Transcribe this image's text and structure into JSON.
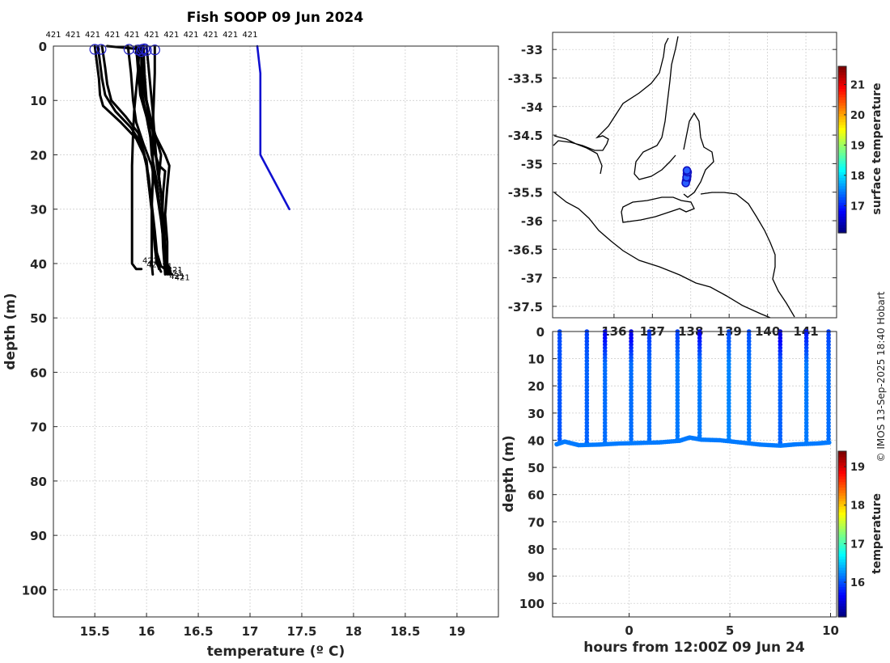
{
  "title": "Fish SOOP 09 Jun 2024",
  "credit": "© IMOS 13-Sep-2025 18:40 Hobart",
  "colors": {
    "profile": "#000000",
    "reference": "#1010d0",
    "marker": "#2020c8"
  },
  "chart_data": [
    {
      "id": "profiles",
      "type": "line",
      "xlabel": "temperature (º C)",
      "ylabel": "depth (m)",
      "xlim": [
        15.1,
        19.4
      ],
      "ylim": [
        105,
        0
      ],
      "y_reversed": true,
      "xticks": [
        "15.5",
        "16",
        "16.5",
        "17",
        "17.5",
        "18",
        "18.5",
        "19"
      ],
      "yticks": [
        "0",
        "10",
        "20",
        "30",
        "40",
        "50",
        "60",
        "70",
        "80",
        "90",
        "100"
      ],
      "top_label": "421",
      "top_label_x": [
        15.1,
        15.29,
        15.48,
        15.67,
        15.86,
        16.05,
        16.24,
        16.43,
        16.62,
        16.81,
        17.0
      ],
      "grid": true,
      "series": [
        {
          "style": "black",
          "points": [
            [
              15.5,
              0
            ],
            [
              15.52,
              3
            ],
            [
              15.54,
              6
            ],
            [
              15.55,
              9
            ],
            [
              15.58,
              11
            ],
            [
              15.75,
              14
            ],
            [
              15.9,
              17
            ],
            [
              16.0,
              21
            ],
            [
              16.02,
              25
            ],
            [
              16.05,
              30
            ],
            [
              16.08,
              35
            ],
            [
              16.1,
              39
            ],
            [
              16.12,
              41
            ]
          ]
        },
        {
          "style": "black",
          "points": [
            [
              15.53,
              0
            ],
            [
              15.55,
              3
            ],
            [
              15.57,
              6
            ],
            [
              15.6,
              9
            ],
            [
              15.7,
              12
            ],
            [
              15.85,
              15
            ],
            [
              15.95,
              18
            ],
            [
              16.0,
              22
            ],
            [
              16.03,
              27
            ],
            [
              16.06,
              32
            ],
            [
              16.08,
              37
            ],
            [
              16.1,
              40
            ],
            [
              16.14,
              41.5
            ]
          ]
        },
        {
          "style": "black",
          "points": [
            [
              15.57,
              0
            ],
            [
              15.6,
              4
            ],
            [
              15.62,
              7
            ],
            [
              15.66,
              10
            ],
            [
              15.8,
              13
            ],
            [
              15.92,
              16
            ],
            [
              15.98,
              20
            ],
            [
              16.02,
              24
            ],
            [
              16.05,
              29
            ],
            [
              16.08,
              34
            ],
            [
              16.1,
              38
            ],
            [
              16.14,
              40.5
            ],
            [
              16.18,
              41
            ]
          ]
        },
        {
          "style": "black",
          "points": [
            [
              15.82,
              0
            ],
            [
              15.85,
              5
            ],
            [
              15.87,
              10
            ],
            [
              15.9,
              14
            ],
            [
              15.97,
              18
            ],
            [
              16.05,
              22
            ],
            [
              16.1,
              27
            ],
            [
              16.14,
              32
            ],
            [
              16.17,
              37
            ],
            [
              16.2,
              41
            ],
            [
              16.22,
              42
            ]
          ]
        },
        {
          "style": "black",
          "points": [
            [
              15.9,
              0
            ],
            [
              15.92,
              5
            ],
            [
              15.94,
              9
            ],
            [
              16.0,
              13
            ],
            [
              16.1,
              17
            ],
            [
              16.18,
              20
            ],
            [
              16.22,
              22
            ],
            [
              16.2,
              26
            ],
            [
              16.18,
              31
            ],
            [
              16.2,
              36
            ],
            [
              16.2,
              40
            ],
            [
              16.24,
              42
            ]
          ]
        },
        {
          "style": "black",
          "points": [
            [
              15.95,
              0
            ],
            [
              15.95,
              4
            ],
            [
              15.97,
              8
            ],
            [
              16.02,
              12
            ],
            [
              16.08,
              16
            ],
            [
              16.14,
              20
            ],
            [
              16.12,
              24
            ],
            [
              16.15,
              29
            ],
            [
              16.17,
              34
            ],
            [
              16.18,
              39
            ],
            [
              16.22,
              41.5
            ]
          ]
        },
        {
          "style": "black",
          "points": [
            [
              15.97,
              0
            ],
            [
              15.98,
              5
            ],
            [
              16.0,
              10
            ],
            [
              16.03,
              15
            ],
            [
              16.05,
              20
            ],
            [
              16.1,
              25
            ],
            [
              16.13,
              30
            ],
            [
              16.16,
              35
            ],
            [
              16.18,
              40
            ],
            [
              16.2,
              42
            ]
          ]
        },
        {
          "style": "black",
          "points": [
            [
              16.0,
              0
            ],
            [
              16.02,
              4
            ],
            [
              16.04,
              8
            ],
            [
              16.06,
              12
            ],
            [
              16.08,
              17
            ],
            [
              16.1,
              22
            ],
            [
              16.14,
              27
            ],
            [
              16.16,
              32
            ],
            [
              16.18,
              37
            ],
            [
              16.18,
              41
            ]
          ]
        },
        {
          "style": "black",
          "points": [
            [
              16.08,
              0
            ],
            [
              16.08,
              5
            ],
            [
              16.07,
              10
            ],
            [
              16.06,
              15
            ],
            [
              16.06,
              20
            ],
            [
              16.06,
              25
            ],
            [
              16.05,
              30
            ],
            [
              16.05,
              35
            ],
            [
              16.05,
              40
            ],
            [
              16.06,
              42
            ]
          ]
        },
        {
          "style": "black",
          "points": [
            [
              15.93,
              0
            ],
            [
              15.92,
              4
            ],
            [
              15.9,
              8
            ],
            [
              15.88,
              12
            ],
            [
              15.87,
              16
            ],
            [
              15.86,
              22
            ],
            [
              15.86,
              28
            ],
            [
              15.86,
              34
            ],
            [
              15.86,
              40
            ],
            [
              15.9,
              41
            ],
            [
              15.95,
              41
            ]
          ]
        },
        {
          "style": "black",
          "points": [
            [
              15.9,
              1
            ],
            [
              15.94,
              5
            ],
            [
              15.96,
              9
            ],
            [
              16.0,
              13
            ],
            [
              16.05,
              18
            ],
            [
              16.12,
              22
            ],
            [
              16.18,
              23
            ],
            [
              16.16,
              27
            ],
            [
              16.15,
              32
            ],
            [
              16.16,
              37
            ],
            [
              16.18,
              42
            ]
          ]
        },
        {
          "style": "black",
          "points": [
            [
              15.62,
              0
            ],
            [
              15.9,
              0.5
            ],
            [
              15.95,
              2
            ],
            [
              15.97,
              6
            ],
            [
              16.0,
              10
            ],
            [
              16.05,
              14
            ],
            [
              16.08,
              19
            ],
            [
              16.12,
              24
            ],
            [
              16.15,
              29
            ],
            [
              16.17,
              34
            ],
            [
              16.18,
              39
            ],
            [
              16.2,
              41
            ]
          ]
        },
        {
          "style": "blue",
          "points": [
            [
              17.07,
              0
            ],
            [
              17.1,
              5
            ],
            [
              17.1,
              10
            ],
            [
              17.1,
              15
            ],
            [
              17.1,
              20
            ],
            [
              17.38,
              30
            ]
          ]
        }
      ],
      "markers": [
        [
          15.5,
          0.6
        ],
        [
          15.56,
          0.6
        ],
        [
          15.83,
          0.6
        ],
        [
          15.92,
          0.7
        ],
        [
          15.96,
          0.6
        ],
        [
          16.0,
          0.8
        ],
        [
          16.08,
          0.7
        ],
        [
          15.95,
          1.0
        ],
        [
          15.98,
          0.5
        ]
      ],
      "end_labels": [
        {
          "text": "421",
          "x": 15.96,
          "y": 39.5
        },
        {
          "text": "421",
          "x": 16.0,
          "y": 40.2
        },
        {
          "text": "421",
          "x": 16.1,
          "y": 40.5
        },
        {
          "text": "421",
          "x": 16.2,
          "y": 41.2
        },
        {
          "text": "421",
          "x": 16.2,
          "y": 41.8
        },
        {
          "text": "421",
          "x": 16.22,
          "y": 42.4
        },
        {
          "text": "421",
          "x": 16.27,
          "y": 42.6
        }
      ]
    },
    {
      "id": "map",
      "type": "scatter",
      "ylim": [
        -37.7,
        -32.7
      ],
      "xlim": [
        134.4,
        141.8
      ],
      "yticks": [
        "-33",
        "-33.5",
        "-34",
        "-34.5",
        "-35",
        "-35.5",
        "-36",
        "-36.5",
        "-37",
        "-37.5"
      ],
      "xticks": [
        "136",
        "137",
        "138",
        "139",
        "140",
        "141"
      ],
      "colorbar": {
        "label": "surface temperature",
        "ticks": [
          "17",
          "18",
          "19",
          "20",
          "21"
        ],
        "range": [
          16.1,
          21.6
        ]
      },
      "points": [
        [
          137.9,
          -35.18
        ],
        [
          137.91,
          -35.22
        ],
        [
          137.9,
          -35.27
        ],
        [
          137.88,
          -35.3
        ],
        [
          137.87,
          -35.34
        ],
        [
          137.89,
          -35.24
        ],
        [
          137.92,
          -35.15
        ],
        [
          137.9,
          -35.12
        ]
      ],
      "grid": true
    },
    {
      "id": "section",
      "type": "scatter",
      "xlabel": "hours from 12:00Z 09 Jun 24",
      "ylabel": "depth (m)",
      "xlim": [
        -3.8,
        10.3
      ],
      "ylim": [
        105,
        0
      ],
      "xticks": [
        "0",
        "5",
        "10"
      ],
      "yticks": [
        "0",
        "10",
        "20",
        "30",
        "40",
        "50",
        "60",
        "70",
        "80",
        "90",
        "100"
      ],
      "colorbar": {
        "label": "temperature",
        "ticks": [
          "16",
          "17",
          "18",
          "19"
        ],
        "range": [
          15.1,
          19.4
        ]
      },
      "casts": [
        {
          "t": -3.45,
          "bottom": 41.5,
          "surf": 15.95,
          "deep": 16.0
        },
        {
          "t": -2.1,
          "bottom": 41.0,
          "surf": 15.9,
          "deep": 16.05
        },
        {
          "t": -1.2,
          "bottom": 41.5,
          "surf": 15.55,
          "deep": 16.1
        },
        {
          "t": 0.1,
          "bottom": 40.5,
          "surf": 15.5,
          "deep": 16.1
        },
        {
          "t": 1.0,
          "bottom": 41.0,
          "surf": 15.85,
          "deep": 16.1
        },
        {
          "t": 2.4,
          "bottom": 40.0,
          "surf": 15.9,
          "deep": 16.15
        },
        {
          "t": 3.5,
          "bottom": 40.0,
          "surf": 15.6,
          "deep": 16.15
        },
        {
          "t": 4.95,
          "bottom": 40.5,
          "surf": 15.95,
          "deep": 16.2
        },
        {
          "t": 5.95,
          "bottom": 41.5,
          "surf": 15.95,
          "deep": 16.15
        },
        {
          "t": 7.5,
          "bottom": 41.5,
          "surf": 15.45,
          "deep": 16.05
        },
        {
          "t": 8.8,
          "bottom": 41.5,
          "surf": 15.7,
          "deep": 16.15
        },
        {
          "t": 9.9,
          "bottom": 41.0,
          "surf": 15.9,
          "deep": 16.1
        }
      ],
      "bottom_track": [
        [
          -3.6,
          41.5
        ],
        [
          -3.2,
          40.5
        ],
        [
          -2.5,
          41.8
        ],
        [
          -1.5,
          41.6
        ],
        [
          -0.5,
          41.2
        ],
        [
          0.5,
          41.0
        ],
        [
          1.5,
          40.8
        ],
        [
          2.5,
          40.2
        ],
        [
          3.0,
          39.0
        ],
        [
          3.6,
          39.8
        ],
        [
          4.5,
          40.0
        ],
        [
          5.5,
          40.8
        ],
        [
          6.5,
          41.6
        ],
        [
          7.5,
          42.0
        ],
        [
          8.3,
          41.5
        ],
        [
          9.3,
          41.2
        ],
        [
          10.0,
          40.8
        ]
      ],
      "grid": true
    }
  ]
}
